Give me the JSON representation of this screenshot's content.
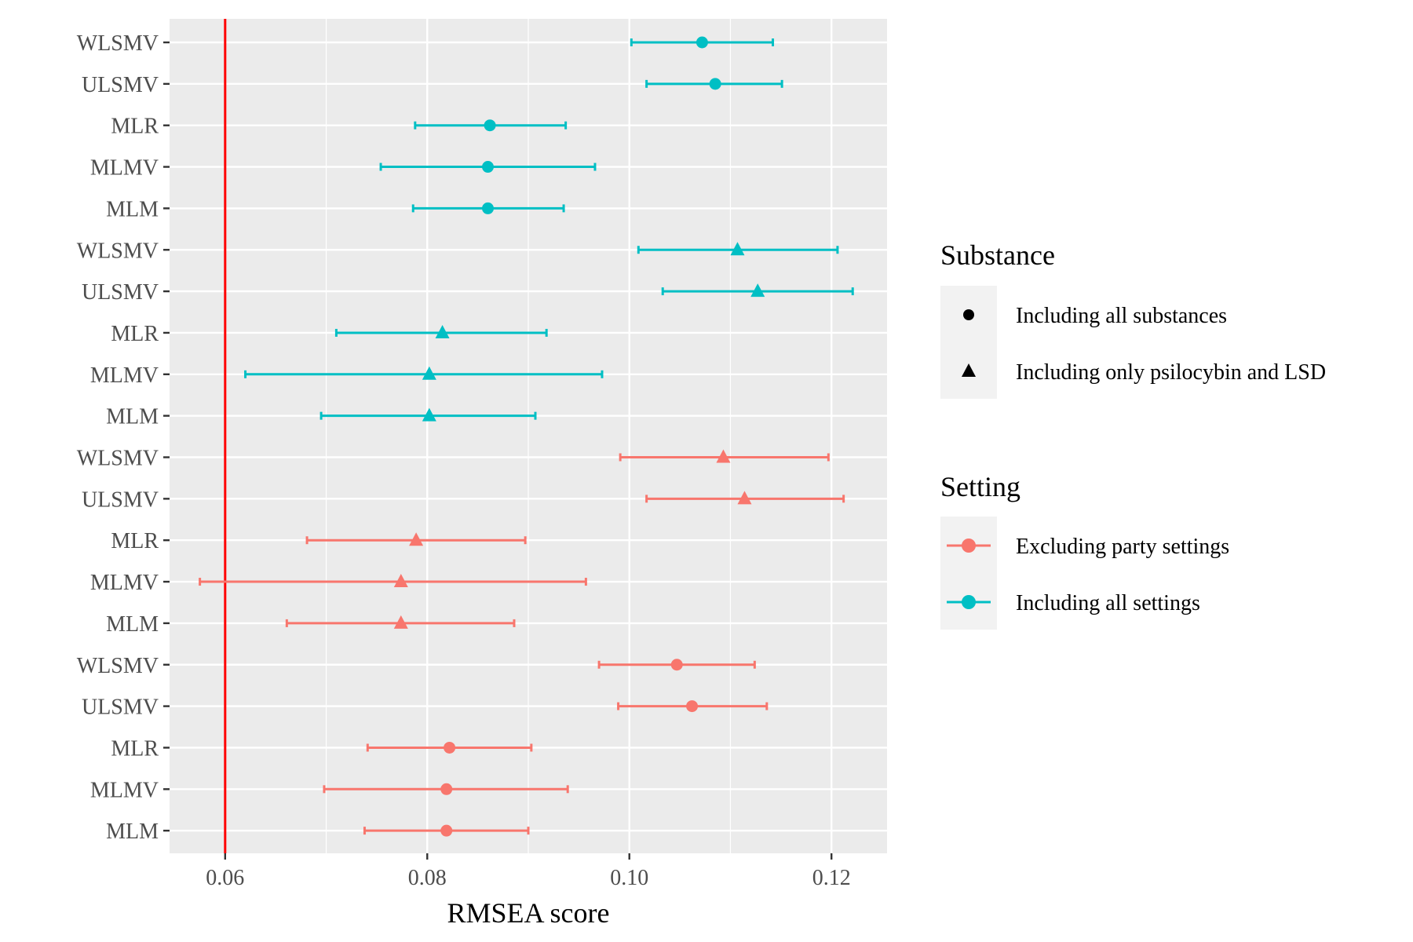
{
  "chart_data": {
    "type": "scatter",
    "subtype": "forest-plot with error bars",
    "xlabel": "RMSEA score",
    "ylabel": "",
    "xlim": [
      0.0545,
      0.1255
    ],
    "x_ticks": [
      0.06,
      0.08,
      0.1,
      0.12
    ],
    "x_tick_labels": [
      "0.06",
      "0.08",
      "0.10",
      "0.12"
    ],
    "reference_line": {
      "x": 0.06,
      "color": "#ff0000"
    },
    "grid": true,
    "legend_position": "right",
    "colors": {
      "Excluding party settings": "#f8766d",
      "Including all settings": "#00bfc4",
      "panel_background": "#ebebeb",
      "grid": "#ffffff"
    },
    "rows": [
      {
        "label": "WLSMV",
        "estimate": 0.1072,
        "lower": 0.1002,
        "upper": 0.1142,
        "setting": "Including all settings",
        "substance": "Including all substances"
      },
      {
        "label": "ULSMV",
        "estimate": 0.1085,
        "lower": 0.1017,
        "upper": 0.1151,
        "setting": "Including all settings",
        "substance": "Including all substances"
      },
      {
        "label": "MLR",
        "estimate": 0.0862,
        "lower": 0.0788,
        "upper": 0.0937,
        "setting": "Including all settings",
        "substance": "Including all substances"
      },
      {
        "label": "MLMV",
        "estimate": 0.086,
        "lower": 0.0754,
        "upper": 0.0966,
        "setting": "Including all settings",
        "substance": "Including all substances"
      },
      {
        "label": "MLM",
        "estimate": 0.086,
        "lower": 0.0786,
        "upper": 0.0935,
        "setting": "Including all settings",
        "substance": "Including all substances"
      },
      {
        "label": "WLSMV",
        "estimate": 0.1107,
        "lower": 0.1009,
        "upper": 0.1206,
        "setting": "Including all settings",
        "substance": "Including only psilocybin and LSD"
      },
      {
        "label": "ULSMV",
        "estimate": 0.1127,
        "lower": 0.1033,
        "upper": 0.1221,
        "setting": "Including all settings",
        "substance": "Including only psilocybin and LSD"
      },
      {
        "label": "MLR",
        "estimate": 0.0815,
        "lower": 0.071,
        "upper": 0.0918,
        "setting": "Including all settings",
        "substance": "Including only psilocybin and LSD"
      },
      {
        "label": "MLMV",
        "estimate": 0.0802,
        "lower": 0.062,
        "upper": 0.0973,
        "setting": "Including all settings",
        "substance": "Including only psilocybin and LSD"
      },
      {
        "label": "MLM",
        "estimate": 0.0802,
        "lower": 0.0695,
        "upper": 0.0907,
        "setting": "Including all settings",
        "substance": "Including only psilocybin and LSD"
      },
      {
        "label": "WLSMV",
        "estimate": 0.1093,
        "lower": 0.0991,
        "upper": 0.1197,
        "setting": "Excluding party settings",
        "substance": "Including only psilocybin and LSD"
      },
      {
        "label": "ULSMV",
        "estimate": 0.1114,
        "lower": 0.1017,
        "upper": 0.1212,
        "setting": "Excluding party settings",
        "substance": "Including only psilocybin and LSD"
      },
      {
        "label": "MLR",
        "estimate": 0.0789,
        "lower": 0.0681,
        "upper": 0.0897,
        "setting": "Excluding party settings",
        "substance": "Including only psilocybin and LSD"
      },
      {
        "label": "MLMV",
        "estimate": 0.0774,
        "lower": 0.0575,
        "upper": 0.0957,
        "setting": "Excluding party settings",
        "substance": "Including only psilocybin and LSD"
      },
      {
        "label": "MLM",
        "estimate": 0.0774,
        "lower": 0.0661,
        "upper": 0.0886,
        "setting": "Excluding party settings",
        "substance": "Including only psilocybin and LSD"
      },
      {
        "label": "WLSMV",
        "estimate": 0.1047,
        "lower": 0.097,
        "upper": 0.1124,
        "setting": "Excluding party settings",
        "substance": "Including all substances"
      },
      {
        "label": "ULSMV",
        "estimate": 0.1062,
        "lower": 0.0989,
        "upper": 0.1136,
        "setting": "Excluding party settings",
        "substance": "Including all substances"
      },
      {
        "label": "MLR",
        "estimate": 0.0822,
        "lower": 0.0741,
        "upper": 0.0903,
        "setting": "Excluding party settings",
        "substance": "Including all substances"
      },
      {
        "label": "MLMV",
        "estimate": 0.0819,
        "lower": 0.0698,
        "upper": 0.0939,
        "setting": "Excluding party settings",
        "substance": "Including all substances"
      },
      {
        "label": "MLM",
        "estimate": 0.0819,
        "lower": 0.0738,
        "upper": 0.09,
        "setting": "Excluding party settings",
        "substance": "Including all substances"
      }
    ],
    "legends": [
      {
        "title": "Substance",
        "entries": [
          {
            "label": "Including all substances",
            "shape": "circle",
            "color": "#000000"
          },
          {
            "label": "Including only psilocybin and LSD",
            "shape": "triangle",
            "color": "#000000"
          }
        ]
      },
      {
        "title": "Setting",
        "entries": [
          {
            "label": "Excluding party settings",
            "shape": "circle-line",
            "color": "#f8766d"
          },
          {
            "label": "Including all settings",
            "shape": "circle-line",
            "color": "#00bfc4"
          }
        ]
      }
    ]
  }
}
